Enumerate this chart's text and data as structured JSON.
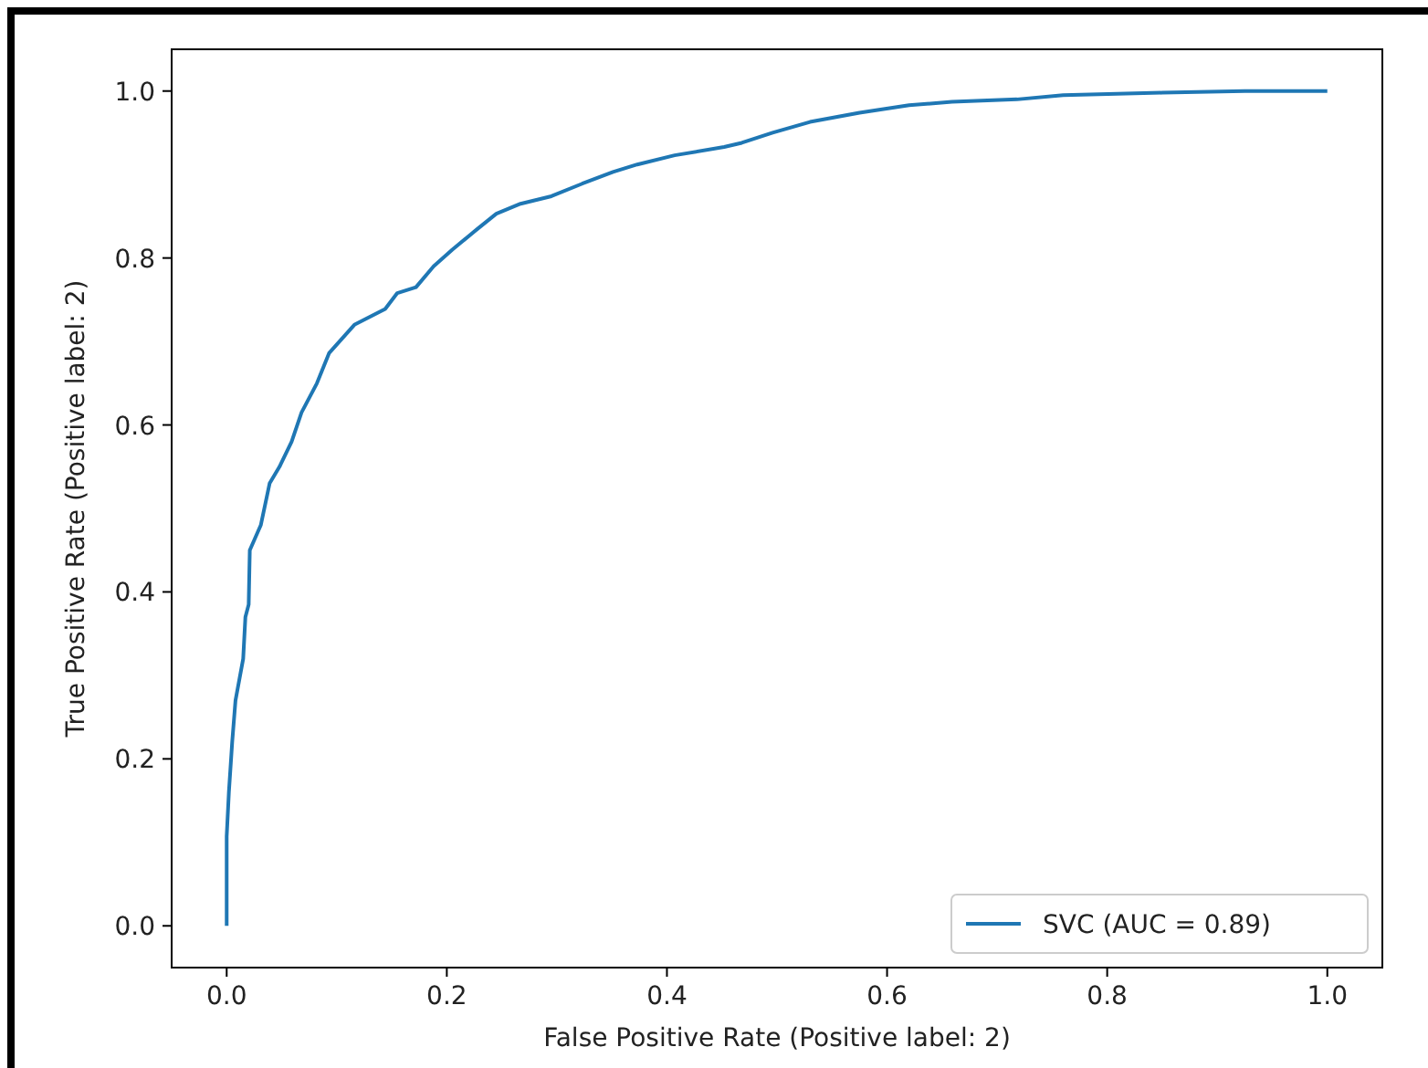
{
  "chart_data": {
    "type": "line",
    "xlabel": "False Positive Rate (Positive label: 2)",
    "ylabel": "True Positive Rate (Positive label: 2)",
    "xlim": [
      -0.05,
      1.05
    ],
    "ylim": [
      -0.05,
      1.05
    ],
    "xticks": [
      {
        "value": 0,
        "label": "0.0"
      },
      0.2,
      0.4,
      0.6,
      0.8,
      {
        "value": 1,
        "label": "1.0"
      }
    ],
    "yticks": [
      {
        "value": 0,
        "label": "0.0"
      },
      0.2,
      0.4,
      0.6,
      0.8,
      {
        "value": 1,
        "label": "1.0"
      }
    ],
    "grid": false,
    "legend": "bottom right",
    "line_style": "solid",
    "marker": "none",
    "series": [
      {
        "name": "SVC (AUC = 0.89)",
        "color": "#1f77b4",
        "x": [
          0,
          0,
          0.002,
          0.005,
          0.008,
          0.015,
          0.017,
          0.02,
          0.021,
          0.031,
          0.039,
          0.048,
          0.059,
          0.068,
          0.082,
          0.093,
          0.116,
          0.144,
          0.155,
          0.172,
          0.188,
          0.205,
          0.228,
          0.245,
          0.267,
          0.295,
          0.323,
          0.351,
          0.373,
          0.407,
          0.452,
          0.468,
          0.496,
          0.53,
          0.575,
          0.62,
          0.659,
          0.718,
          0.76,
          0.85,
          0.925,
          1.0
        ],
        "values": [
          0,
          0.107,
          0.16,
          0.22,
          0.27,
          0.32,
          0.37,
          0.385,
          0.45,
          0.48,
          0.53,
          0.55,
          0.58,
          0.615,
          0.65,
          0.686,
          0.72,
          0.739,
          0.758,
          0.765,
          0.79,
          0.81,
          0.835,
          0.853,
          0.865,
          0.874,
          0.889,
          0.903,
          0.912,
          0.923,
          0.933,
          0.938,
          0.95,
          0.963,
          0.974,
          0.983,
          0.987,
          0.99,
          0.995,
          0.998,
          1.0,
          1.0
        ]
      }
    ]
  }
}
